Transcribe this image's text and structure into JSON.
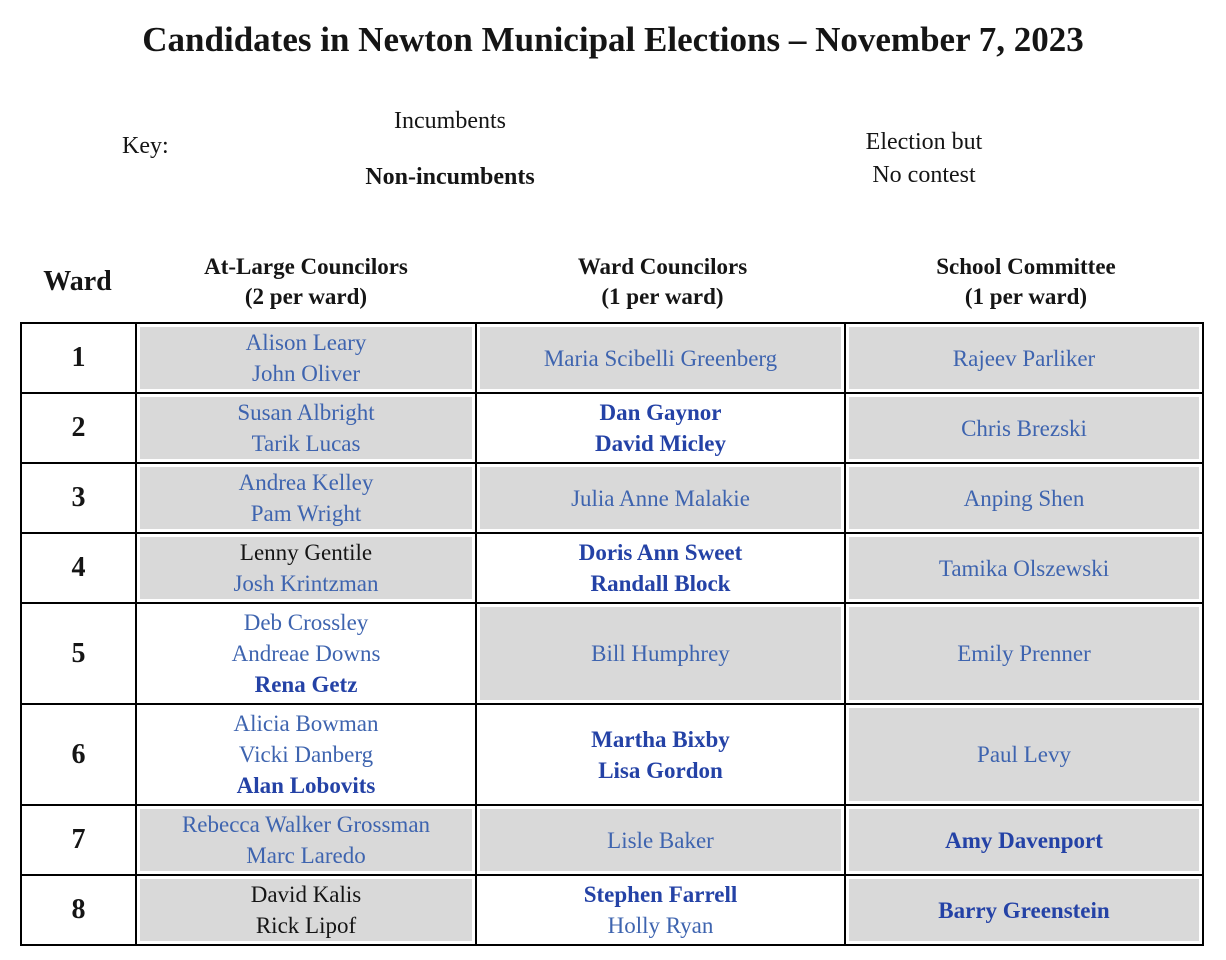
{
  "page": {
    "title": "Candidates in Newton Municipal Elections – November 7, 2023"
  },
  "key": {
    "label": "Key:",
    "incumbents": "Incumbents",
    "non_incumbents": "Non-incumbents",
    "no_contest_box": {
      "line1": "Election but",
      "line2": "No contest"
    }
  },
  "colors": {
    "incumbent_text": "#3e64af",
    "non_incumbent_text": "#2442a6",
    "plain_text": "#151515",
    "no_contest_fill": "#d9d9d9",
    "border": "#000000"
  },
  "table": {
    "ward_header": "Ward",
    "columns": [
      {
        "title": "At-Large Councilors",
        "subtitle": "(2 per ward)"
      },
      {
        "title": "Ward Councilors",
        "subtitle": "(1 per ward)"
      },
      {
        "title": "School Committee",
        "subtitle": "(1 per ward)"
      }
    ],
    "rows": [
      {
        "ward": "1",
        "cells": [
          {
            "shaded": true,
            "candidates": [
              {
                "name": "Alison Leary",
                "style": "incumbent"
              },
              {
                "name": "John Oliver",
                "style": "incumbent"
              }
            ]
          },
          {
            "shaded": true,
            "candidates": [
              {
                "name": "Maria Scibelli Greenberg",
                "style": "incumbent"
              }
            ]
          },
          {
            "shaded": true,
            "candidates": [
              {
                "name": "Rajeev Parliker",
                "style": "incumbent"
              }
            ]
          }
        ]
      },
      {
        "ward": "2",
        "cells": [
          {
            "shaded": true,
            "candidates": [
              {
                "name": "Susan Albright",
                "style": "incumbent"
              },
              {
                "name": "Tarik Lucas",
                "style": "incumbent"
              }
            ]
          },
          {
            "shaded": false,
            "candidates": [
              {
                "name": "Dan Gaynor",
                "style": "non_incumbent"
              },
              {
                "name": "David Micley",
                "style": "non_incumbent"
              }
            ]
          },
          {
            "shaded": true,
            "candidates": [
              {
                "name": "Chris Brezski",
                "style": "incumbent"
              }
            ]
          }
        ]
      },
      {
        "ward": "3",
        "cells": [
          {
            "shaded": true,
            "candidates": [
              {
                "name": "Andrea Kelley",
                "style": "incumbent"
              },
              {
                "name": "Pam Wright",
                "style": "incumbent"
              }
            ]
          },
          {
            "shaded": true,
            "candidates": [
              {
                "name": "Julia Anne Malakie",
                "style": "incumbent"
              }
            ]
          },
          {
            "shaded": true,
            "candidates": [
              {
                "name": "Anping Shen",
                "style": "incumbent"
              }
            ]
          }
        ]
      },
      {
        "ward": "4",
        "cells": [
          {
            "shaded": true,
            "candidates": [
              {
                "name": "Lenny Gentile",
                "style": "plain"
              },
              {
                "name": "Josh Krintzman",
                "style": "incumbent"
              }
            ]
          },
          {
            "shaded": false,
            "candidates": [
              {
                "name": "Doris Ann Sweet",
                "style": "non_incumbent"
              },
              {
                "name": "Randall Block",
                "style": "non_incumbent"
              }
            ]
          },
          {
            "shaded": true,
            "candidates": [
              {
                "name": "Tamika Olszewski",
                "style": "incumbent"
              }
            ]
          }
        ]
      },
      {
        "ward": "5",
        "cells": [
          {
            "shaded": false,
            "candidates": [
              {
                "name": "Deb Crossley",
                "style": "incumbent"
              },
              {
                "name": "Andreae Downs",
                "style": "incumbent"
              },
              {
                "name": "Rena Getz",
                "style": "non_incumbent"
              }
            ]
          },
          {
            "shaded": true,
            "candidates": [
              {
                "name": "Bill Humphrey",
                "style": "incumbent"
              }
            ]
          },
          {
            "shaded": true,
            "candidates": [
              {
                "name": "Emily Prenner",
                "style": "incumbent"
              }
            ]
          }
        ]
      },
      {
        "ward": "6",
        "cells": [
          {
            "shaded": false,
            "candidates": [
              {
                "name": "Alicia Bowman",
                "style": "incumbent"
              },
              {
                "name": "Vicki Danberg",
                "style": "incumbent"
              },
              {
                "name": "Alan Lobovits",
                "style": "non_incumbent"
              }
            ]
          },
          {
            "shaded": false,
            "candidates": [
              {
                "name": "Martha Bixby",
                "style": "non_incumbent"
              },
              {
                "name": "Lisa Gordon",
                "style": "non_incumbent"
              }
            ]
          },
          {
            "shaded": true,
            "candidates": [
              {
                "name": "Paul Levy",
                "style": "incumbent"
              }
            ]
          }
        ]
      },
      {
        "ward": "7",
        "cells": [
          {
            "shaded": true,
            "candidates": [
              {
                "name": "Rebecca Walker Grossman",
                "style": "incumbent"
              },
              {
                "name": "Marc Laredo",
                "style": "incumbent"
              }
            ]
          },
          {
            "shaded": true,
            "candidates": [
              {
                "name": "Lisle Baker",
                "style": "incumbent"
              }
            ]
          },
          {
            "shaded": true,
            "candidates": [
              {
                "name": "Amy Davenport",
                "style": "non_incumbent"
              }
            ]
          }
        ]
      },
      {
        "ward": "8",
        "cells": [
          {
            "shaded": true,
            "candidates": [
              {
                "name": "David Kalis",
                "style": "plain"
              },
              {
                "name": "Rick Lipof",
                "style": "plain"
              }
            ]
          },
          {
            "shaded": false,
            "candidates": [
              {
                "name": "Stephen Farrell",
                "style": "non_incumbent"
              },
              {
                "name": "Holly Ryan",
                "style": "incumbent"
              }
            ]
          },
          {
            "shaded": true,
            "candidates": [
              {
                "name": "Barry Greenstein",
                "style": "non_incumbent"
              }
            ]
          }
        ]
      }
    ]
  }
}
